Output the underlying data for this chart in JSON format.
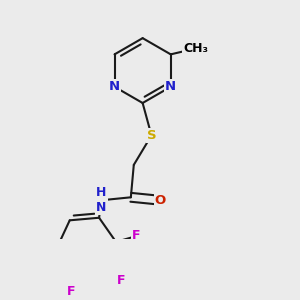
{
  "background_color": "#ebebeb",
  "atom_colors": {
    "C": "#000000",
    "N": "#2020cc",
    "S": "#ccaa00",
    "O": "#cc2200",
    "F": "#cc00cc",
    "H": "#000000"
  },
  "bond_color": "#1a1a1a",
  "bond_width": 1.5,
  "font_size_atoms": 9.5,
  "font_size_methyl": 9
}
